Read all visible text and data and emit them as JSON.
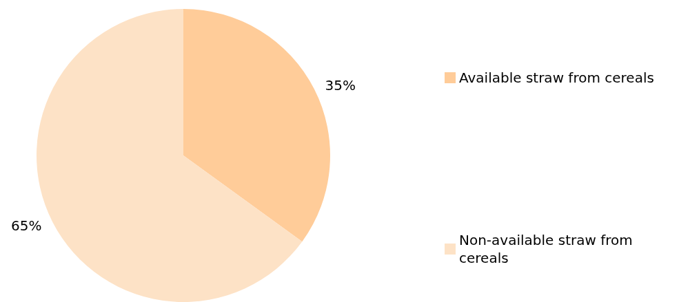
{
  "chart_data": {
    "type": "pie",
    "categories": [
      "Available straw from cereals",
      "Non-available straw from cereals"
    ],
    "values": [
      35,
      65
    ],
    "colors": [
      "#ffcc99",
      "#fde2c6"
    ],
    "legend": "right",
    "value_labels": [
      "35%",
      "65%"
    ]
  }
}
